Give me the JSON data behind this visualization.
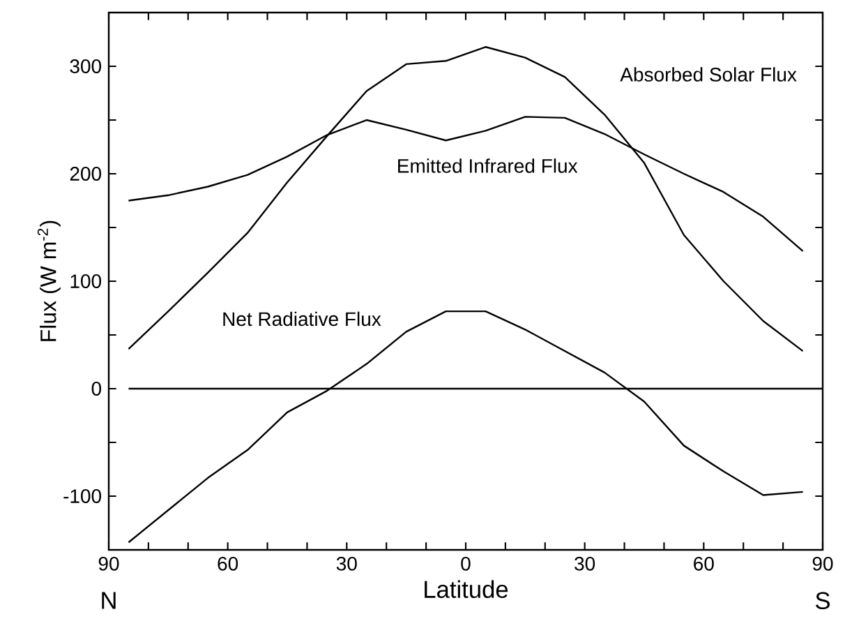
{
  "chart_data": {
    "type": "line",
    "xlabel": "Latitude",
    "ylabel": "Flux (W m$^{-2}$)",
    "x": [
      85,
      75,
      65,
      55,
      45,
      35,
      25,
      15,
      5,
      -5,
      -15,
      -25,
      -35,
      -45,
      -55,
      -65,
      -75,
      -85
    ],
    "series": [
      {
        "name": "Absorbed Solar Flux",
        "color": "#000000",
        "values": [
          37,
          72,
          108,
          145,
          192,
          235,
          277,
          302,
          305,
          318,
          308,
          290,
          255,
          210,
          143,
          100,
          63,
          35
        ]
      },
      {
        "name": "Emitted Infrared Flux",
        "color": "#000000",
        "values": [
          175,
          180,
          188,
          199,
          216,
          236,
          250,
          241,
          231,
          240,
          253,
          252,
          237,
          218,
          200,
          183,
          160,
          128
        ]
      },
      {
        "name": "Net Radiative Flux",
        "color": "#000000",
        "values": [
          -143,
          -113,
          -83,
          -57,
          -22,
          -2,
          23,
          53,
          72,
          72,
          55,
          35,
          15,
          -12,
          -53,
          -77,
          -99,
          -96
        ]
      }
    ],
    "annotations": [
      "N",
      "S"
    ],
    "ref_lines": [
      {
        "axis": "y",
        "value": 0,
        "color": "#000000"
      }
    ],
    "xlim": [
      90,
      -90
    ],
    "ylim": [
      -150,
      350
    ],
    "xticks": [
      90,
      {
        "value": 80,
        "label": null
      },
      {
        "value": 70,
        "label": null
      },
      60,
      {
        "value": 50,
        "label": null
      },
      {
        "value": 40,
        "label": null
      },
      30,
      {
        "value": 20,
        "label": null
      },
      {
        "value": 10,
        "label": null
      },
      0,
      {
        "value": -10,
        "label": null
      },
      {
        "value": -20,
        "label": null
      },
      {
        "value": -30,
        "label": "30"
      },
      {
        "value": -40,
        "label": null
      },
      {
        "value": -50,
        "label": null
      },
      {
        "value": -60,
        "label": "60"
      },
      {
        "value": -70,
        "label": null
      },
      {
        "value": -80,
        "label": null
      },
      {
        "value": -90,
        "label": "90"
      }
    ],
    "yticks": [
      {
        "value": -150,
        "label": null
      },
      -100,
      {
        "value": -50,
        "label": null
      },
      0,
      {
        "value": 50,
        "label": null
      },
      100,
      {
        "value": 150,
        "label": null
      },
      200,
      {
        "value": 250,
        "label": null
      },
      300,
      {
        "value": 350,
        "label": null
      }
    ],
    "grid": false,
    "marker": "none",
    "line_style": "solid"
  }
}
